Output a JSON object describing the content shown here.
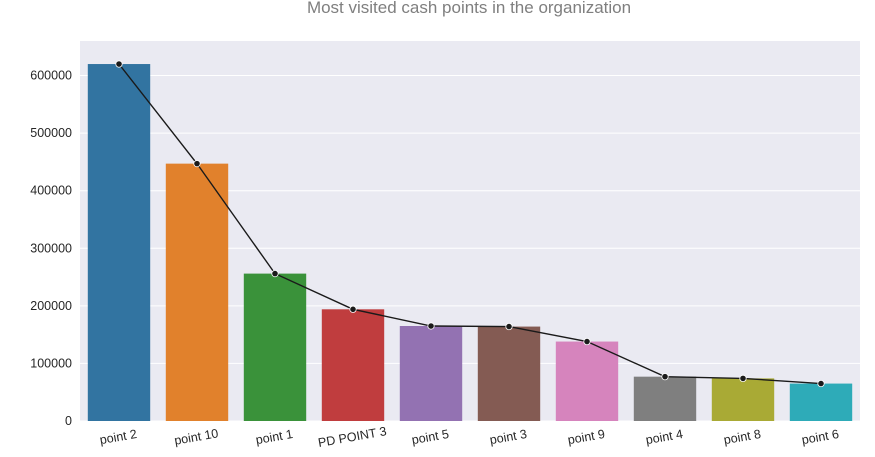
{
  "chart_data": {
    "type": "bar",
    "title": "Most visited cash points in the organization",
    "xlabel": "",
    "ylabel": "",
    "categories": [
      "point 2",
      "point 10",
      "point 1",
      "PD  POINT 3",
      "point 5",
      "point 3",
      "point 9",
      "point 4",
      "point 8",
      "point 6"
    ],
    "values": [
      620000,
      447000,
      256000,
      194000,
      165000,
      164000,
      138000,
      77000,
      74000,
      65000
    ],
    "colors": [
      "#3274a1",
      "#e1812c",
      "#3a923a",
      "#c03d3e",
      "#9372b2",
      "#845b53",
      "#d684bd",
      "#7f7f7f",
      "#a9aa35",
      "#2eabb8"
    ],
    "overlay_line": {
      "type": "line",
      "color": "#1a1a1a",
      "marker": "dot"
    },
    "ylim": [
      0,
      660000
    ],
    "yticks": [
      0,
      100000,
      200000,
      300000,
      400000,
      500000,
      600000
    ],
    "ytick_labels": [
      "0",
      "100000",
      "200000",
      "300000",
      "400000",
      "500000",
      "600000"
    ],
    "grid": true,
    "background": "#eaeaf2"
  }
}
